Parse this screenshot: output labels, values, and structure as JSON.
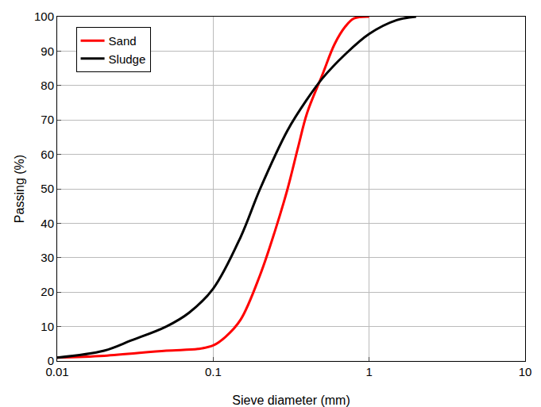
{
  "chart_data": {
    "type": "line",
    "x_label": "Sieve diameter (mm)",
    "y_label": "Passing (%)",
    "log": "x",
    "grid": true,
    "legend": "top-left",
    "xlim": [
      0.01,
      10
    ],
    "xticks": [
      0.01,
      0.1,
      1,
      10
    ],
    "ylim": [
      0,
      100
    ],
    "yticks": [
      0,
      10,
      20,
      30,
      40,
      50,
      60,
      70,
      80,
      90,
      100
    ],
    "series": [
      {
        "name": "Sand",
        "color": "#ff0000",
        "line_style": "solid",
        "x": [
          0.01,
          0.02,
          0.05,
          0.08,
          0.1,
          0.12,
          0.15,
          0.2,
          0.25,
          0.3,
          0.35,
          0.4,
          0.5,
          0.6,
          0.7,
          0.8,
          1
        ],
        "values": [
          1,
          1.5,
          3,
          3.5,
          4.5,
          7,
          12,
          25,
          38,
          50,
          62,
          72,
          83,
          92,
          97,
          99.5,
          100
        ]
      },
      {
        "name": "Sludge",
        "color": "#000000",
        "line_style": "solid",
        "x": [
          0.01,
          0.02,
          0.03,
          0.05,
          0.07,
          0.1,
          0.15,
          0.2,
          0.3,
          0.4,
          0.5,
          0.7,
          1,
          1.5,
          2
        ],
        "values": [
          1,
          3,
          6,
          10,
          14,
          21,
          36,
          50,
          67,
          76,
          82,
          89,
          95,
          99,
          100
        ]
      }
    ]
  }
}
